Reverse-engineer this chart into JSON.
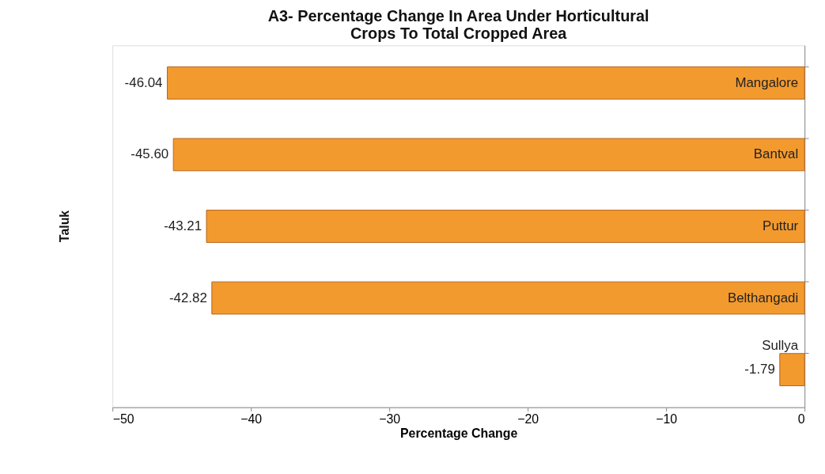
{
  "chart_data": {
    "type": "bar",
    "orientation": "horizontal",
    "title": "A3- Percentage Change In Area Under Horticultural Crops To Total Cropped Area",
    "xlabel": "Percentage Change",
    "ylabel": "Taluk",
    "categories": [
      "Mangalore",
      "Bantval",
      "Puttur",
      "Belthangadi",
      "Sullya"
    ],
    "values": [
      -46.04,
      -45.6,
      -43.21,
      -42.82,
      -1.79
    ],
    "value_labels": [
      "-46.04",
      "-45.60",
      "-43.21",
      "-42.82",
      "-1.79"
    ],
    "color": "#f39a2e",
    "xlim": [
      -50,
      0
    ],
    "xticks": [
      -50,
      -40,
      -30,
      -20,
      -10,
      0
    ],
    "grid": false
  }
}
